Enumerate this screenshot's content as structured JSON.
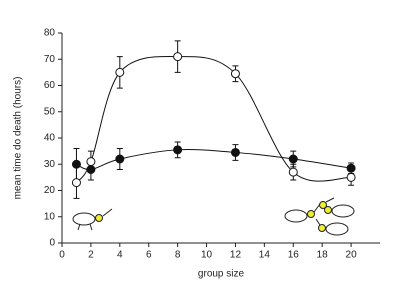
{
  "chart_data": {
    "type": "scatter",
    "xlabel": "group size",
    "ylabel": "mean time do death (hours)",
    "xlim": [
      0,
      22
    ],
    "xticks": [
      0,
      2,
      4,
      6,
      8,
      10,
      12,
      14,
      16,
      18,
      20
    ],
    "ylim": [
      0,
      80
    ],
    "yticks": [
      0,
      10,
      20,
      30,
      40,
      50,
      60,
      70,
      80
    ],
    "series": [
      {
        "marker": "filled",
        "color": "#111111",
        "x": [
          1,
          2,
          4,
          8,
          12,
          16,
          20
        ],
        "values": [
          30,
          28,
          32,
          35.5,
          34.5,
          32,
          28.5
        ],
        "errors": [
          6,
          4,
          4,
          3,
          3,
          3,
          2
        ]
      },
      {
        "marker": "open",
        "color": "#111111",
        "x": [
          1,
          2,
          4,
          8,
          12,
          16,
          20
        ],
        "values": [
          23,
          31,
          65,
          71,
          64.5,
          27,
          25
        ],
        "errors": [
          6,
          4,
          6,
          6,
          3,
          3,
          3
        ]
      }
    ]
  }
}
